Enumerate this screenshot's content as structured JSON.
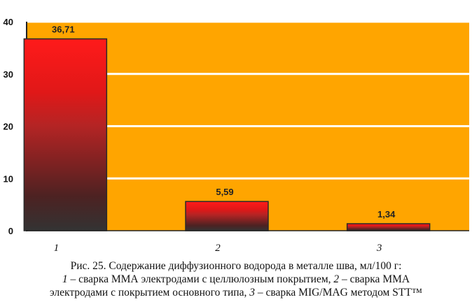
{
  "chart_data": {
    "type": "bar",
    "categories": [
      "1",
      "2",
      "3"
    ],
    "values": [
      36.71,
      5.59,
      1.34
    ],
    "value_labels": [
      "36,71",
      "5,59",
      "1,34"
    ],
    "ylim": [
      0,
      40
    ],
    "yticks": [
      "0",
      "10",
      "20",
      "30",
      "40"
    ],
    "grid": true,
    "background_color": "#ffa500",
    "gridline_color": "#ffffff",
    "bar_style": "vertical gradient from red (#ff1a1a) at top to dark grey (#333333) at base"
  },
  "caption": {
    "line1": "Рис. 25. Содержание диффузионного водорода в металле шва, мл/100 г:",
    "line2_num1": "1",
    "line2_text1": " – сварка ММА электродами с целлюлозным покрытием, ",
    "line2_num2": "2",
    "line2_text2": " – сварка ММА",
    "line3_text1": "электродами с покрытием основного типа, ",
    "line3_num3": "3",
    "line3_text2": " – сварка MIG/MAG методом STT™"
  }
}
